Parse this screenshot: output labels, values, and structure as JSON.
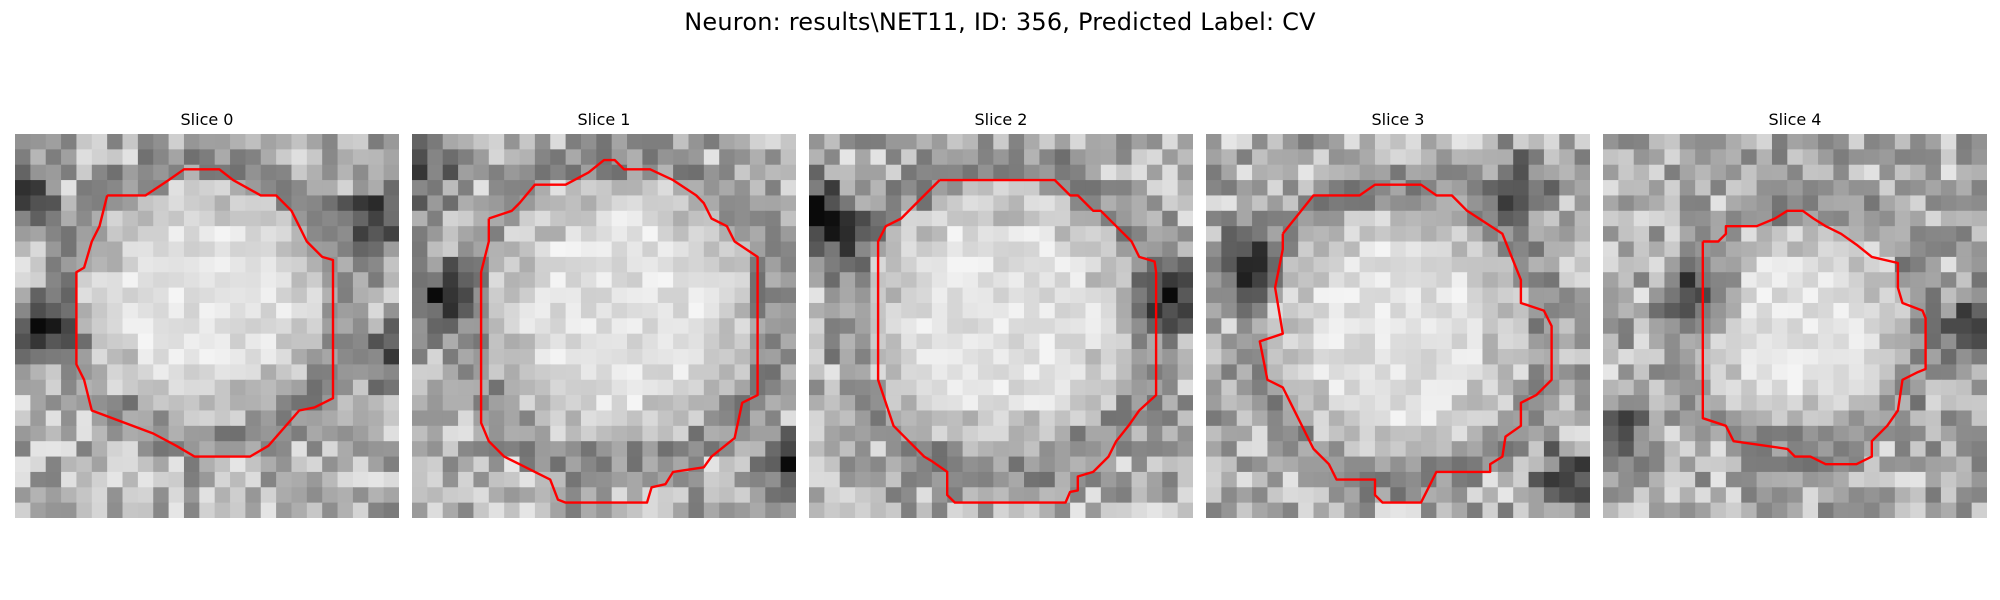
{
  "figure": {
    "title": "Neuron: results\\NET11, ID: 356, Predicted Label: CV"
  },
  "contour_color": "#ff0000",
  "colormap": "grayscale",
  "slices": [
    {
      "title": "Slice 0",
      "image_name": "slice-0-grayscale-image",
      "contour_name": "neuron-roi-contour"
    },
    {
      "title": "Slice 1",
      "image_name": "slice-1-grayscale-image",
      "contour_name": "neuron-roi-contour"
    },
    {
      "title": "Slice 2",
      "image_name": "slice-2-grayscale-image",
      "contour_name": "neuron-roi-contour"
    },
    {
      "title": "Slice 3",
      "image_name": "slice-3-grayscale-image",
      "contour_name": "neuron-roi-contour"
    },
    {
      "title": "Slice 4",
      "image_name": "slice-4-grayscale-image",
      "contour_name": "neuron-roi-contour"
    }
  ]
}
